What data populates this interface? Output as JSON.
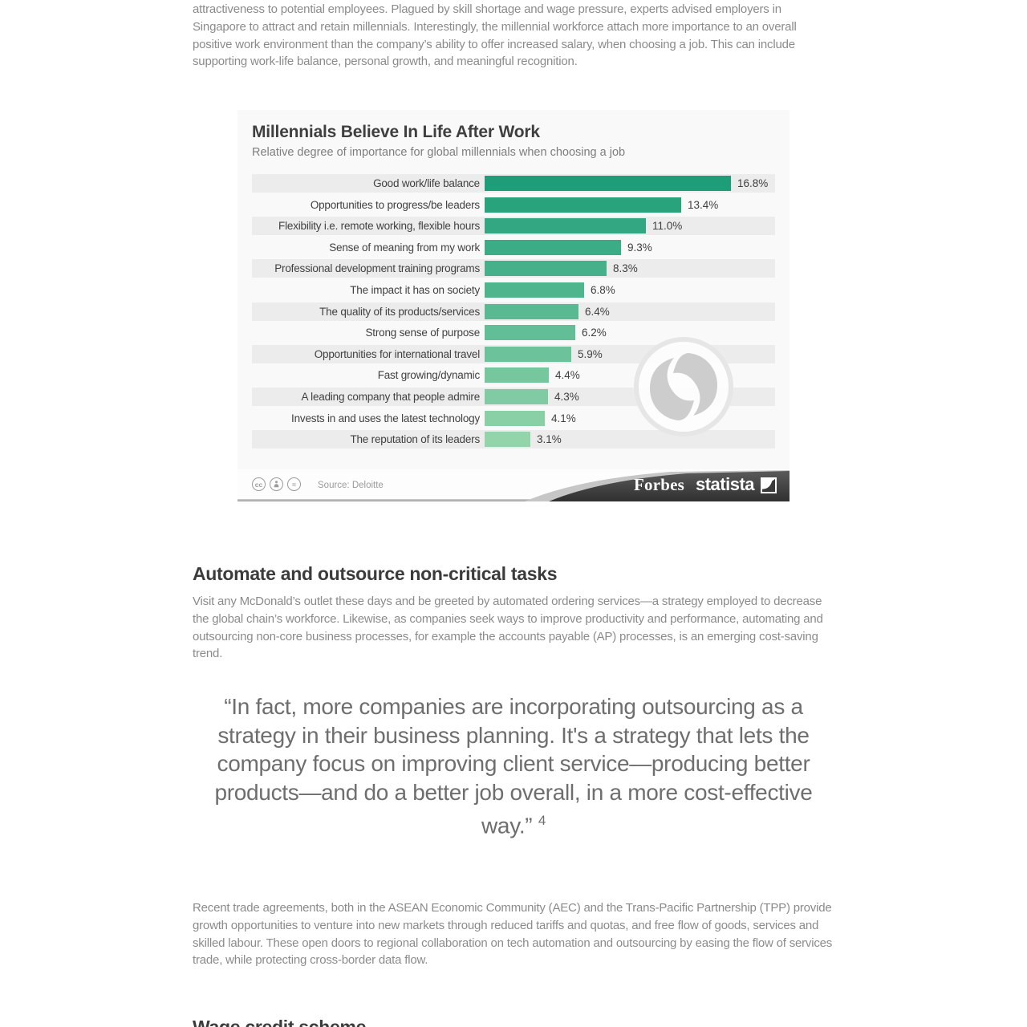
{
  "page": {
    "intro_paragraph": "attractiveness to potential employees. Plagued by skill shortage and wage pressure, experts advised employers in Singapore to attract and retain millennials. Interestingly, the millennial workforce attach more importance to an overall positive work environment than the company’s ability to offer increased salary, when choosing a job. This can include supporting work-life balance, personal growth, and meaningful recognition.",
    "section2": {
      "heading": "Automate and outsource non-critical tasks",
      "paragraph": "Visit any McDonald’s outlet these days and be greeted by automated ordering services—a strategy employed to decrease the global chain’s workforce. Likewise, as companies seek ways to improve productivity and performance, automating and outsourcing non-core business processes, for example the accounts payable (AP) processes, is an emerging cost-saving trend."
    },
    "quote": {
      "text": "“In fact, more companies are incorporating outsourcing as a strategy in their business planning. It's a strategy that lets the company focus on improving client service—producing better products—and do a better job overall, in a more cost-effective way.”",
      "footnote_ref": "4"
    },
    "section3_paragraph": "Recent trade agreements, both in the ASEAN Economic Community (AEC) and the Trans-Pacific Partnership (TPP) provide growth opportunities to venture into new markets through reduced tariffs and quotas, and free flow of goods, services and skilled labour. These open doors to regional collaboration on tech automation and outsourcing by easing the flow of services trade, while protecting cross-border data flow.",
    "section4_heading": "Wage credit scheme"
  },
  "chart_data": {
    "type": "bar",
    "orientation": "horizontal",
    "title": "Millennials Believe In Life After Work",
    "subtitle": "Relative degree of importance for global millennials when choosing a job",
    "source": "Source: Deloitte",
    "unit": "%",
    "xlim": [
      0,
      17.5
    ],
    "grid": false,
    "legend": "none",
    "categories": [
      "Good work/life balance",
      "Opportunities to progress/be leaders",
      "Flexibility i.e. remote working, flexible hours",
      "Sense of meaning from my work",
      "Professional development training programs",
      "The impact it has on society",
      "The quality of its products/services",
      "Strong sense of purpose",
      "Opportunities for international travel",
      "Fast growing/dynamic",
      "A leading company that people admire",
      "Invests in and uses the latest technology",
      "The reputation of its leaders"
    ],
    "values": [
      16.8,
      13.4,
      11.0,
      9.3,
      8.3,
      6.8,
      6.4,
      6.2,
      5.9,
      4.4,
      4.3,
      4.1,
      3.1
    ],
    "value_labels": [
      "16.8%",
      "13.4%",
      "11.0%",
      "9.3%",
      "8.3%",
      "6.8%",
      "6.4%",
      "6.2%",
      "5.9%",
      "4.4%",
      "4.3%",
      "4.1%",
      "3.1%"
    ],
    "bar_colors": [
      "#1e9e78",
      "#28a37c",
      "#32a781",
      "#3bac85",
      "#45b089",
      "#4fb58d",
      "#59b992",
      "#62be96",
      "#6cc29a",
      "#76c79e",
      "#80cba3",
      "#89d0a7",
      "#93d4ab"
    ],
    "stripe_color": "#ececec",
    "background_color": "#f9f9f9",
    "branding": {
      "forbes": "Forbes",
      "statista": "statista"
    },
    "license_icons": {
      "cc": "cc",
      "no_derivatives": "="
    }
  }
}
